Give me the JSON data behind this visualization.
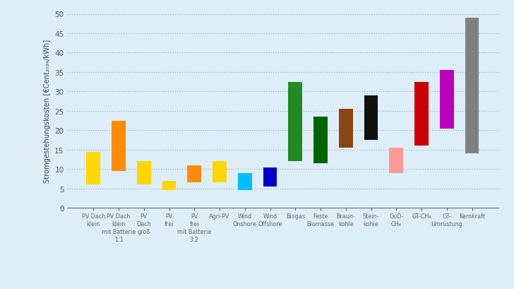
{
  "categories": [
    "PV Dach\nklein",
    "PV Dach\nklein\nmit Batterie\n1:1",
    "PV\nDach\ngroß",
    "PV\nfrei",
    "PV\nfrei\nmit Batterie\n3:2",
    "Agri-PV",
    "Wind\nOnshore",
    "Wind\nOffshore",
    "Biogas",
    "Feste\nBiomasse",
    "Braun-\nkohle",
    "Stein-\nkohle",
    "GuD-\nCH₄",
    "GT-CH₄",
    "GT-\nUmrüstung",
    "Kernkraft"
  ],
  "bar_bottoms": [
    6.0,
    9.5,
    6.0,
    4.5,
    6.5,
    6.5,
    4.5,
    5.5,
    12.0,
    11.5,
    15.5,
    17.5,
    9.0,
    16.0,
    20.5,
    14.0
  ],
  "bar_tops": [
    14.5,
    22.5,
    12.0,
    7.0,
    11.0,
    12.0,
    9.0,
    10.5,
    32.5,
    23.5,
    25.5,
    29.0,
    15.5,
    32.5,
    35.5,
    49.0
  ],
  "bar_colors": [
    "#FFD700",
    "#FF8C00",
    "#FFD700",
    "#FFD700",
    "#FF8C00",
    "#FFD700",
    "#00BFFF",
    "#0000CD",
    "#228B22",
    "#006400",
    "#8B4513",
    "#111111",
    "#FF9999",
    "#CC0000",
    "#BB00BB",
    "#808080"
  ],
  "ylabel": "Stromgestehungskosten [€Cent₂₀₂₄/kWh]",
  "ylim": [
    0,
    50
  ],
  "yticks": [
    0,
    5,
    10,
    15,
    20,
    25,
    30,
    35,
    40,
    45,
    50
  ],
  "background_color": "#ddeef8",
  "bar_width": 0.55,
  "figsize": [
    7.28,
    4.1
  ],
  "dpi": 100
}
